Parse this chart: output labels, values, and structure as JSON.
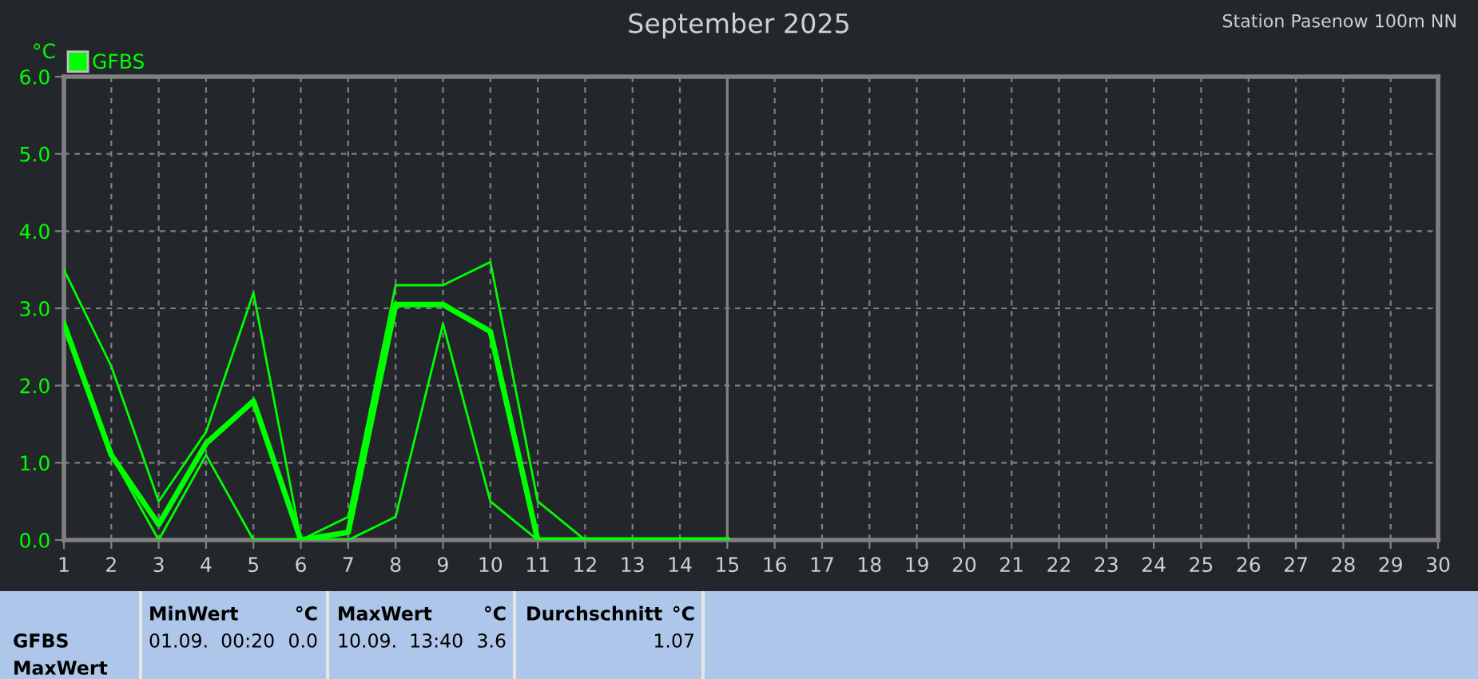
{
  "chart_data": {
    "type": "line",
    "title": "September 2025",
    "ylabel": "°C",
    "x": [
      1,
      2,
      3,
      4,
      5,
      6,
      7,
      8,
      9,
      10,
      11,
      12,
      13,
      14,
      15
    ],
    "series": [
      {
        "color": "#00ff00",
        "values": [
          3.5,
          2.25,
          0.5,
          1.4,
          3.2,
          0.0,
          0.3,
          3.3,
          3.3,
          3.6,
          0.5,
          0.0,
          0.0,
          0.0,
          0.0
        ]
      },
      {
        "name": "GFBS",
        "color": "#00ff00",
        "values": [
          2.8,
          1.1,
          0.2,
          1.25,
          1.8,
          0.0,
          0.1,
          3.05,
          3.05,
          2.7,
          0.0,
          0.0,
          0.0,
          0.0,
          0.0
        ]
      },
      {
        "color": "#00ff00",
        "values": [
          2.8,
          1.1,
          0.0,
          1.1,
          0.0,
          0.0,
          0.0,
          0.3,
          2.8,
          0.5,
          0.0,
          0.0,
          0.0,
          0.0,
          0.0
        ]
      }
    ],
    "xlim": [
      1,
      30
    ],
    "xticks": [
      1,
      2,
      3,
      4,
      5,
      6,
      7,
      8,
      9,
      10,
      11,
      12,
      13,
      14,
      15,
      16,
      17,
      18,
      19,
      20,
      21,
      22,
      23,
      24,
      25,
      26,
      27,
      28,
      29,
      30
    ],
    "ylim": [
      0,
      6
    ],
    "yticks": [
      {
        "value": 0,
        "label": "0.0"
      },
      {
        "value": 1,
        "label": "1.0"
      },
      {
        "value": 2,
        "label": "2.0"
      },
      {
        "value": 3,
        "label": "3.0"
      },
      {
        "value": 4,
        "label": "4.0"
      },
      {
        "value": 5,
        "label": "5.0"
      },
      {
        "value": 6,
        "label": "6.0"
      }
    ],
    "ref_lines": [
      {
        "axis": "x",
        "value": 15,
        "color": "#808080"
      }
    ],
    "grid": true,
    "legend": "top left",
    "marker": "none",
    "line_style": "solid",
    "annotations": [
      "Station Pasenow 100m NN",
      "GFBS",
      "MaxWert",
      "MinWert",
      "°C",
      "01.09.  00:20",
      "0.0",
      "MaxWert",
      "°C",
      "10.09.  13:40",
      "3.6",
      "Durchschnitt",
      "°C",
      "1.07"
    ]
  }
}
